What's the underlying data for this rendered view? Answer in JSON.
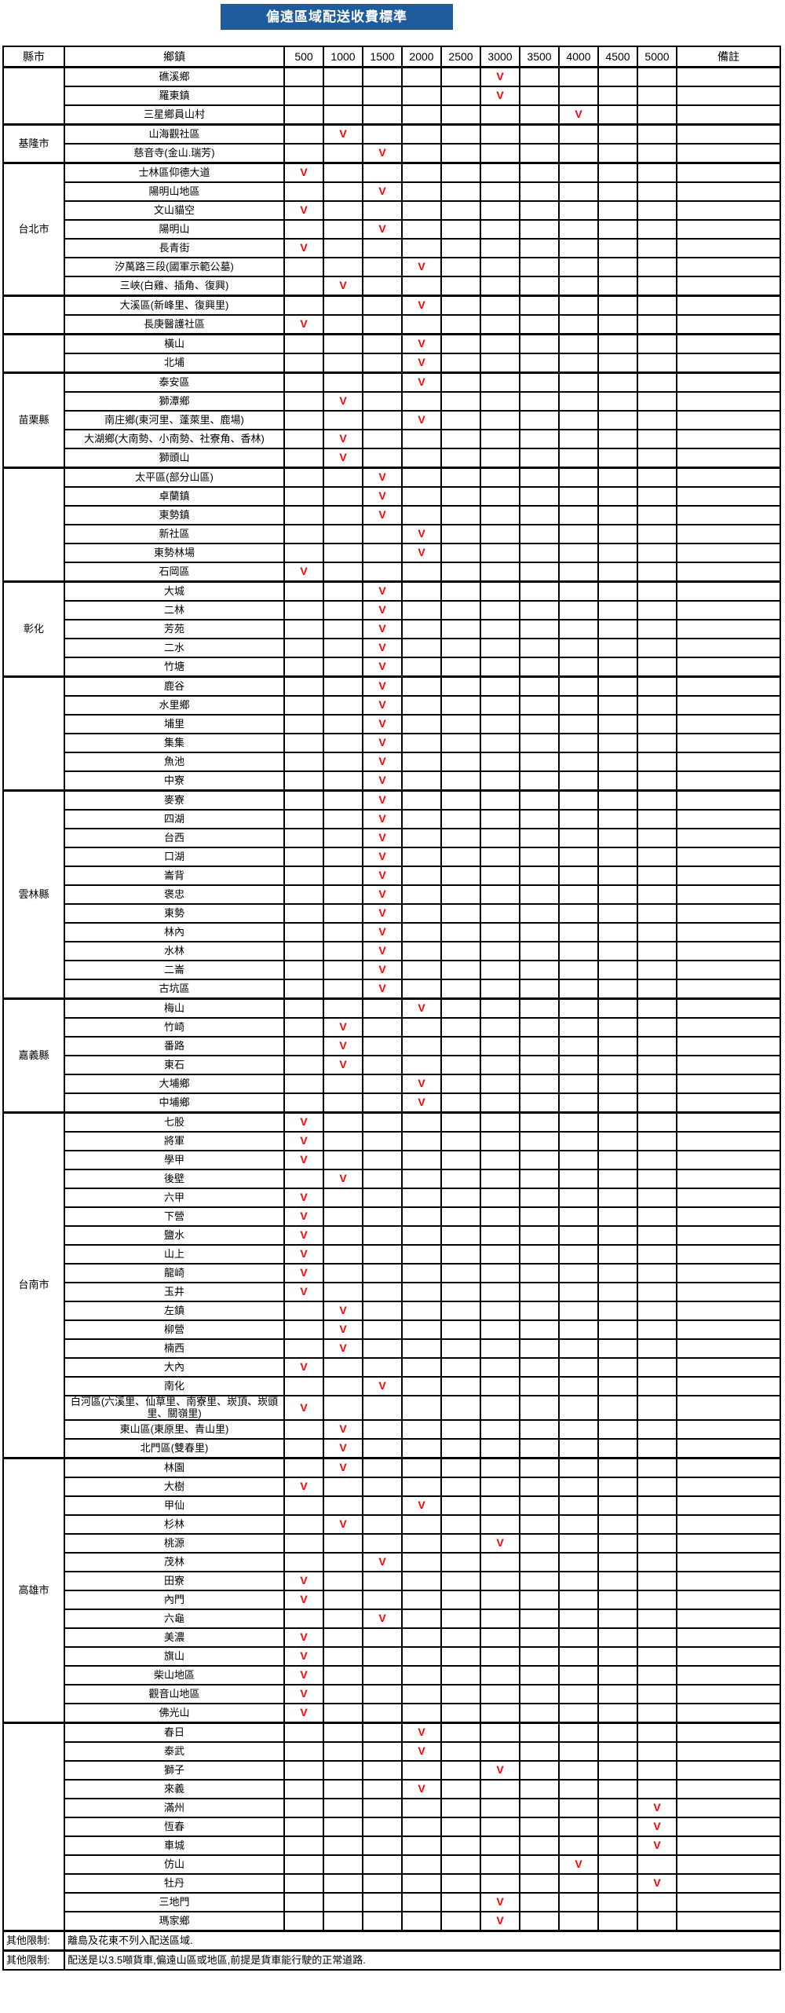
{
  "title": "偏遠區域配送收費標準",
  "check_mark": "V",
  "colors": {
    "banner_blue": "#1f5c9d",
    "check_red": "#ff0000",
    "grid": "#000000"
  },
  "columns": {
    "county": "縣市",
    "township": "鄉鎮",
    "prices": [
      "500",
      "1000",
      "1500",
      "2000",
      "2500",
      "3000",
      "3500",
      "4000",
      "4500",
      "5000"
    ],
    "note": "備註"
  },
  "groups": [
    {
      "county": "",
      "rows": [
        {
          "township": "礁溪鄉",
          "check": "3000"
        },
        {
          "township": "羅東鎮",
          "check": "3000"
        },
        {
          "township": "三星鄉員山村",
          "check": "4000"
        }
      ]
    },
    {
      "county": "基隆市",
      "rows": [
        {
          "township": "山海觀社區",
          "check": "1000"
        },
        {
          "township": "慈音寺(金山.瑞芳)",
          "check": "1500"
        }
      ]
    },
    {
      "county": "台北市",
      "rows": [
        {
          "township": "士林區仰德大道",
          "check": "500"
        },
        {
          "township": "陽明山地區",
          "check": "1500"
        },
        {
          "township": "文山貓空",
          "check": "500"
        },
        {
          "township": "陽明山",
          "check": "1500"
        },
        {
          "township": "長青街",
          "check": "500"
        },
        {
          "township": "汐萬路三段(國軍示範公墓)",
          "check": "2000"
        },
        {
          "township": "三峽(白雞、插角、復興)",
          "check": "1000"
        }
      ]
    },
    {
      "county": "",
      "rows": [
        {
          "township": "大溪區(新峰里、復興里)",
          "check": "2000"
        },
        {
          "township": "長庚醫護社區",
          "check": "500"
        }
      ]
    },
    {
      "county": "",
      "rows": [
        {
          "township": "橫山",
          "check": "2000"
        },
        {
          "township": "北埔",
          "check": "2000"
        }
      ]
    },
    {
      "county": "苗栗縣",
      "rows": [
        {
          "township": "泰安區",
          "check": "2000"
        },
        {
          "township": "獅潭鄉",
          "check": "1000"
        },
        {
          "township": "南庄鄉(東河里、蓬萊里、鹿場)",
          "check": "2000"
        },
        {
          "township": "大湖鄉(大南勢、小南勢、社寮角、香林)",
          "check": "1000",
          "tall": true
        },
        {
          "township": "獅頭山",
          "check": "1000"
        }
      ]
    },
    {
      "county": "",
      "rows": [
        {
          "township": "太平區(部分山區)",
          "check": "1500"
        },
        {
          "township": "卓蘭鎮",
          "check": "1500"
        },
        {
          "township": "東勢鎮",
          "check": "1500"
        },
        {
          "township": "新社區",
          "check": "2000"
        },
        {
          "township": "東勢林場",
          "check": "2000"
        },
        {
          "township": "石岡區",
          "check": "500"
        }
      ]
    },
    {
      "county": "彰化",
      "rows": [
        {
          "township": "大城",
          "check": "1500"
        },
        {
          "township": "二林",
          "check": "1500"
        },
        {
          "township": "芳苑",
          "check": "1500"
        },
        {
          "township": "二水",
          "check": "1500"
        },
        {
          "township": "竹塘",
          "check": "1500"
        }
      ]
    },
    {
      "county": "",
      "rows": [
        {
          "township": "鹿谷",
          "check": "1500"
        },
        {
          "township": "水里鄉",
          "check": "1500"
        },
        {
          "township": "埔里",
          "check": "1500"
        },
        {
          "township": "集集",
          "check": "1500"
        },
        {
          "township": "魚池",
          "check": "1500"
        },
        {
          "township": "中寮",
          "check": "1500"
        }
      ]
    },
    {
      "county": "雲林縣",
      "rows": [
        {
          "township": "麥寮",
          "check": "1500"
        },
        {
          "township": "四湖",
          "check": "1500"
        },
        {
          "township": "台西",
          "check": "1500"
        },
        {
          "township": "口湖",
          "check": "1500"
        },
        {
          "township": "崙背",
          "check": "1500"
        },
        {
          "township": "褒忠",
          "check": "1500"
        },
        {
          "township": "東勢",
          "check": "1500"
        },
        {
          "township": "林內",
          "check": "1500"
        },
        {
          "township": "水林",
          "check": "1500"
        },
        {
          "township": "二崙",
          "check": "1500"
        },
        {
          "township": "古坑區",
          "check": "1500"
        }
      ]
    },
    {
      "county": "嘉義縣",
      "rows": [
        {
          "township": "梅山",
          "check": "2000"
        },
        {
          "township": "竹崎",
          "check": "1000"
        },
        {
          "township": "番路",
          "check": "1000"
        },
        {
          "township": "東石",
          "check": "1000"
        },
        {
          "township": "大埔鄉",
          "check": "2000"
        },
        {
          "township": "中埔鄉",
          "check": "2000"
        }
      ]
    },
    {
      "county": "台南市",
      "rows": [
        {
          "township": "七股",
          "check": "500"
        },
        {
          "township": "將軍",
          "check": "500"
        },
        {
          "township": "學甲",
          "check": "500"
        },
        {
          "township": "後壁",
          "check": "1000"
        },
        {
          "township": "六甲",
          "check": "500"
        },
        {
          "township": "下營",
          "check": "500"
        },
        {
          "township": "鹽水",
          "check": "500"
        },
        {
          "township": "山上",
          "check": "500"
        },
        {
          "township": "龍崎",
          "check": "500"
        },
        {
          "township": "玉井",
          "check": "500"
        },
        {
          "township": "左鎮",
          "check": "1000"
        },
        {
          "township": "柳營",
          "check": "1000"
        },
        {
          "township": "楠西",
          "check": "1000"
        },
        {
          "township": "大內",
          "check": "500"
        },
        {
          "township": "南化",
          "check": "1500"
        },
        {
          "township": "白河區(六溪里、仙草里、南寮里、崁頂、崁頭里、關嶺里)",
          "check": "500",
          "tall": true
        },
        {
          "township": "東山區(東原里、青山里)",
          "check": "1000"
        },
        {
          "township": "北門區(雙春里)",
          "check": "1000"
        }
      ]
    },
    {
      "county": "高雄市",
      "rows": [
        {
          "township": "林園",
          "check": "1000"
        },
        {
          "township": "大樹",
          "check": "500"
        },
        {
          "township": "甲仙",
          "check": "2000"
        },
        {
          "township": "杉林",
          "check": "1000"
        },
        {
          "township": "桃源",
          "check": "3000"
        },
        {
          "township": "茂林",
          "check": "1500"
        },
        {
          "township": "田寮",
          "check": "500"
        },
        {
          "township": "內門",
          "check": "500"
        },
        {
          "township": "六龜",
          "check": "1500"
        },
        {
          "township": "美濃",
          "check": "500"
        },
        {
          "township": "旗山",
          "check": "500"
        },
        {
          "township": "柴山地區",
          "check": "500"
        },
        {
          "township": "觀音山地區",
          "check": "500"
        },
        {
          "township": "佛光山",
          "check": "500"
        }
      ]
    },
    {
      "county": "",
      "rows": [
        {
          "township": "春日",
          "check": "2000"
        },
        {
          "township": "泰武",
          "check": "2000"
        },
        {
          "township": "獅子",
          "check": "3000"
        },
        {
          "township": "來義",
          "check": "2000"
        },
        {
          "township": "滿州",
          "check": "5000"
        },
        {
          "township": "恆春",
          "check": "5000"
        },
        {
          "township": "車城",
          "check": "5000"
        },
        {
          "township": "仿山",
          "check": "4000"
        },
        {
          "township": "牡丹",
          "check": "5000"
        },
        {
          "township": "三地門",
          "check": "3000"
        },
        {
          "township": "瑪家鄉",
          "check": "3000"
        }
      ]
    }
  ],
  "footnotes": [
    {
      "label": "其他限制:",
      "text": "離島及花東不列入配送區域."
    },
    {
      "label": "其他限制:",
      "text": "配送是以3.5噸貨車,偏遠山區或地區,前提是貨車能行駛的正常道路."
    }
  ],
  "layout_widths": {
    "county": 78,
    "township": 280,
    "price": 50,
    "note": 132
  }
}
